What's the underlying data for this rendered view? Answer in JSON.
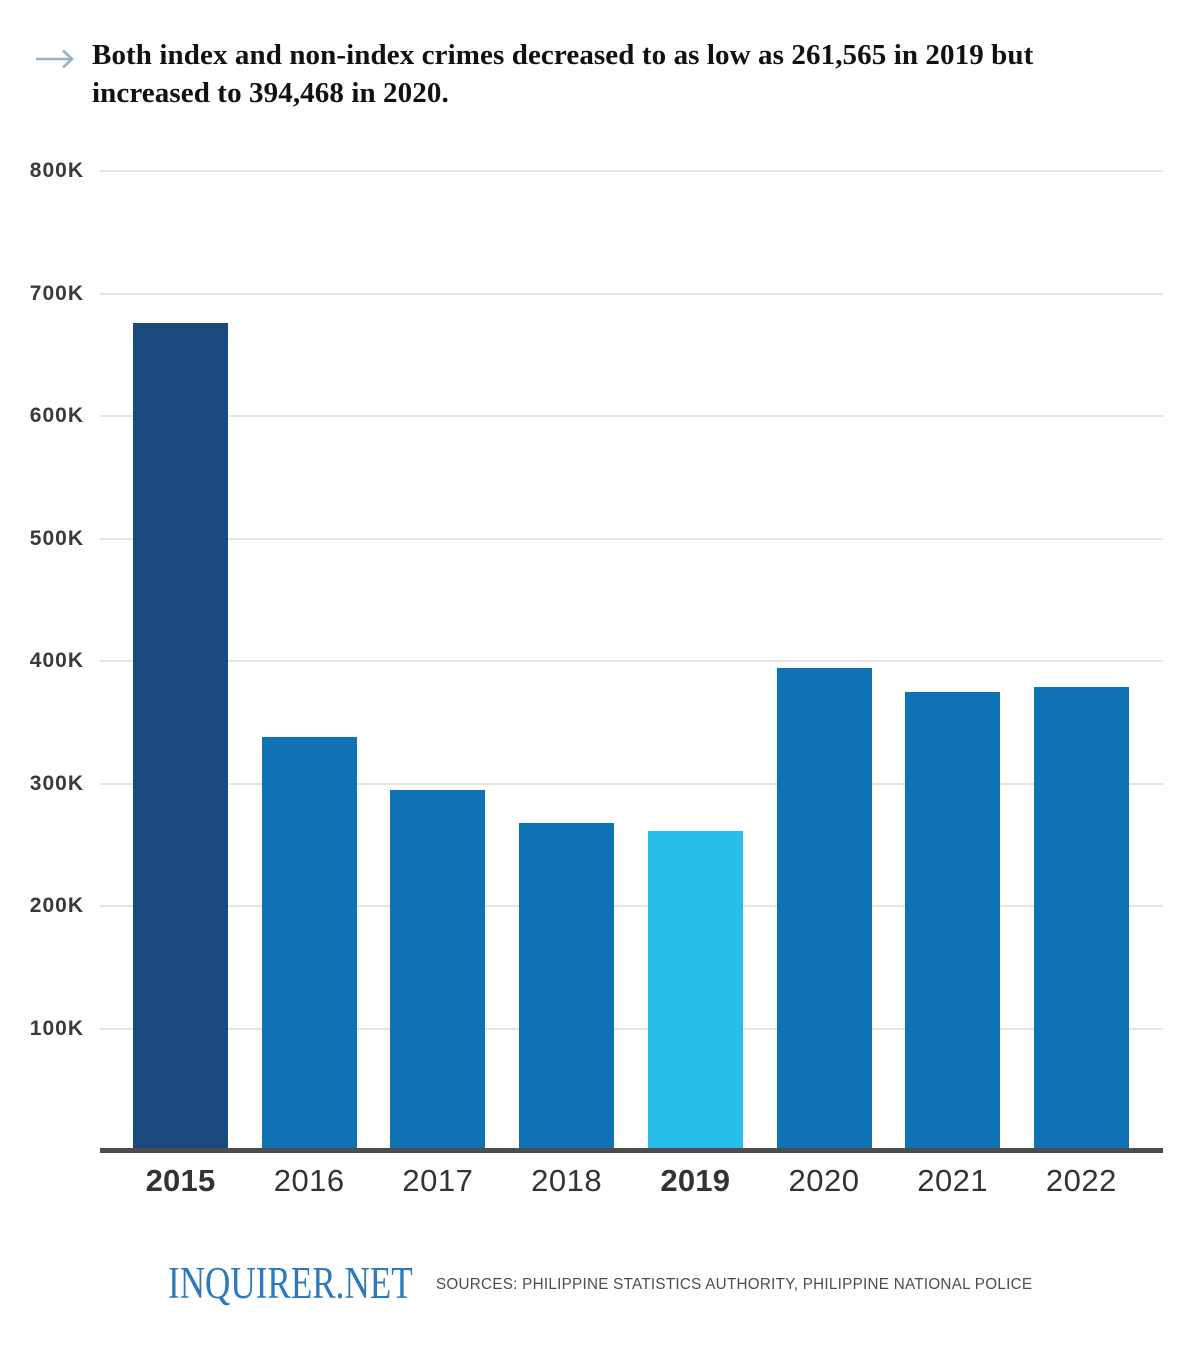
{
  "title": {
    "arrow_icon": "arrow-right",
    "text": "Both index and non-index crimes decreased to as low as 261,565 in 2019 but increased to 394,468 in 2020."
  },
  "chart_data": {
    "type": "bar",
    "title": "Both index and non-index crimes decreased to as low as 261,565 in 2019 but increased to 394,468 in 2020.",
    "categories": [
      "2015",
      "2016",
      "2017",
      "2018",
      "2019",
      "2020",
      "2021",
      "2022"
    ],
    "values": [
      676000,
      338000,
      295000,
      268000,
      261565,
      394468,
      375000,
      379000
    ],
    "bar_colors": [
      "#1a4a7e",
      "#0e72b5",
      "#0e72b5",
      "#0e72b5",
      "#29bde9",
      "#0e72b5",
      "#0e72b5",
      "#0e72b5"
    ],
    "bold_categories": [
      "2015",
      "2019"
    ],
    "yticks": [
      {
        "value": 800000,
        "label": "800K"
      },
      {
        "value": 700000,
        "label": "700K"
      },
      {
        "value": 600000,
        "label": "600K"
      },
      {
        "value": 500000,
        "label": "500K"
      },
      {
        "value": 400000,
        "label": "400K"
      },
      {
        "value": 300000,
        "label": "300K"
      },
      {
        "value": 200000,
        "label": "200K"
      },
      {
        "value": 100000,
        "label": "100K"
      }
    ],
    "ylim": [
      0,
      800000
    ],
    "xlabel": "",
    "ylabel": "",
    "grid": true,
    "legend": null
  },
  "footer": {
    "logo_text": "INQUIRER.NET",
    "sources_text": "SOURCES: PHILIPPINE STATISTICS AUTHORITY, PHILIPPINE NATIONAL POLICE"
  },
  "colors": {
    "bar_navy": "#1a4a7e",
    "bar_blue": "#0e72b5",
    "bar_cyan": "#29bde9",
    "axis_line": "#4d4d4d",
    "gridline": "#e4e4e4",
    "tick_label": "#3a3a3a",
    "year_label": "#333333",
    "title_text": "#111111",
    "arrow": "#96b1c8",
    "logo_blue": "#2b7abd",
    "sources_gray": "#4d4d4d",
    "background": "#ffffff"
  }
}
